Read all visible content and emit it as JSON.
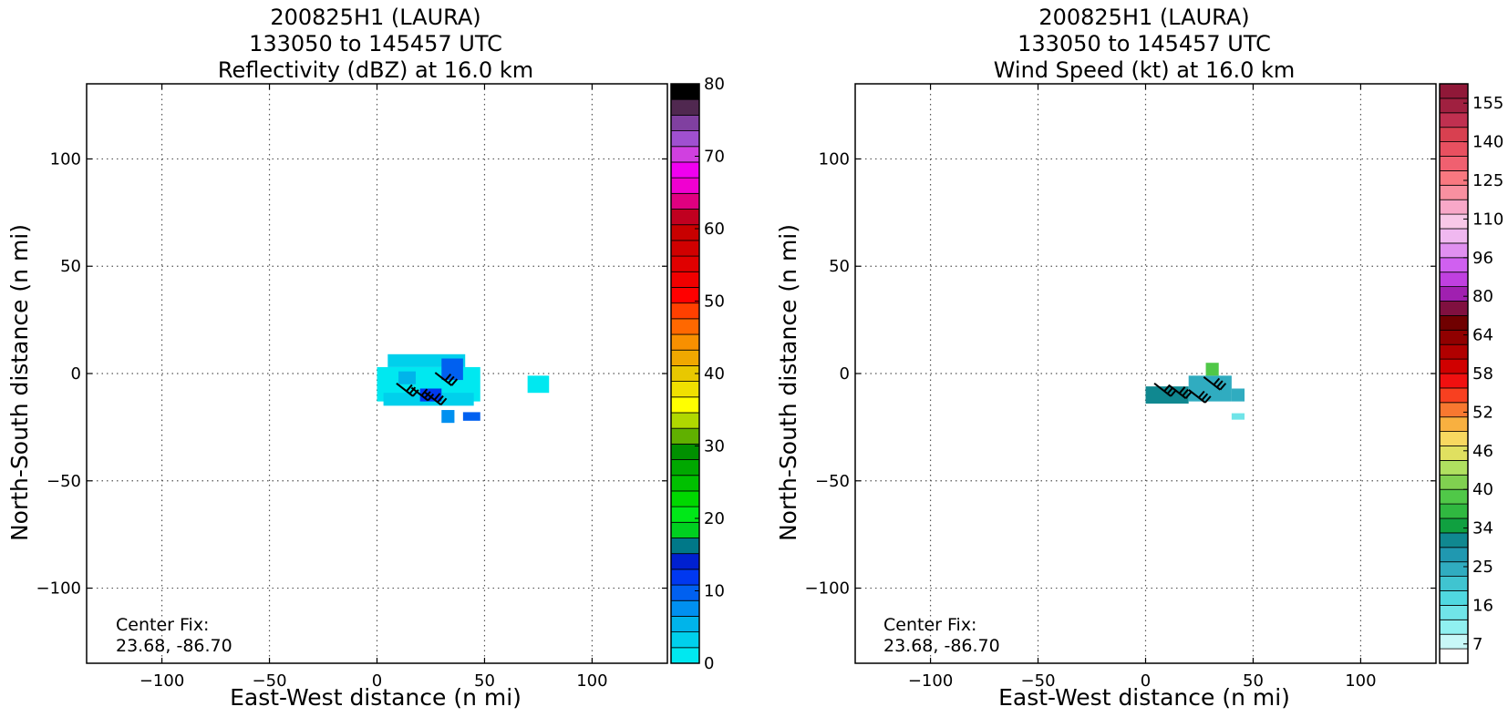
{
  "chart_data": [
    {
      "type": "heatmap",
      "variable": "reflectivity",
      "title": [
        "200825H1 (LAURA)",
        "133050 to 145457 UTC",
        "Reflectivity (dBZ) at 16.0 km"
      ],
      "xlabel": "East-West distance (n mi)",
      "ylabel": "North-South distance (n mi)",
      "xlim": [
        -135,
        135
      ],
      "ylim": [
        -135,
        135
      ],
      "xticks": [
        -100,
        -50,
        0,
        50,
        100
      ],
      "yticks": [
        -100,
        -50,
        0,
        50,
        100
      ],
      "xtick_labels": [
        "−100",
        "−50",
        "0",
        "50",
        "100"
      ],
      "ytick_labels": [
        "−100",
        "−50",
        "0",
        "50",
        "100"
      ],
      "grid": true,
      "annotation": [
        "Center Fix:",
        "23.68, -86.70"
      ],
      "colorbar": {
        "ticks": [
          0,
          10,
          20,
          30,
          40,
          50,
          60,
          70,
          80
        ],
        "tick_labels": [
          "0",
          "10",
          "20",
          "30",
          "40",
          "50",
          "60",
          "70",
          "80"
        ],
        "range": [
          0,
          80
        ],
        "colors": [
          "#00e8f0",
          "#00d0ec",
          "#00b4ea",
          "#0090f0",
          "#0060f0",
          "#0038f0",
          "#0020d0",
          "#007888",
          "#00d020",
          "#00e818",
          "#00d800",
          "#00c000",
          "#00a800",
          "#009000",
          "#60b000",
          "#b0d800",
          "#ffff00",
          "#f0e000",
          "#e8c800",
          "#f0a800",
          "#f89000",
          "#ff6800",
          "#ff4000",
          "#ff0000",
          "#f00000",
          "#e00000",
          "#d00000",
          "#c80000",
          "#c00020",
          "#e00080",
          "#f000d0",
          "#f000f0",
          "#d040e0",
          "#a050d0",
          "#8040a0",
          "#502850",
          "#000000"
        ]
      },
      "field": [
        {
          "x": 0,
          "y": -5,
          "w": 48,
          "h": 16,
          "dbz": 2
        },
        {
          "x": 5,
          "y": 6,
          "w": 36,
          "h": 6,
          "dbz": 4
        },
        {
          "x": 3,
          "y": -12,
          "w": 42,
          "h": 6,
          "dbz": 3
        },
        {
          "x": 30,
          "y": 2,
          "w": 10,
          "h": 10,
          "dbz": 10
        },
        {
          "x": 20,
          "y": -10,
          "w": 10,
          "h": 6,
          "dbz": 12
        },
        {
          "x": 10,
          "y": -2,
          "w": 8,
          "h": 6,
          "dbz": 6
        },
        {
          "x": 40,
          "y": -20,
          "w": 8,
          "h": 4,
          "dbz": 9
        },
        {
          "x": 70,
          "y": -5,
          "w": 10,
          "h": 8,
          "dbz": 2
        },
        {
          "x": 30,
          "y": -20,
          "w": 6,
          "h": 6,
          "dbz": 8
        }
      ],
      "barbs": [
        {
          "x": 15,
          "y": -8
        },
        {
          "x": 22,
          "y": -10
        },
        {
          "x": 28,
          "y": -12
        },
        {
          "x": 33,
          "y": -3
        }
      ]
    },
    {
      "type": "heatmap",
      "variable": "wind speed",
      "title": [
        "200825H1 (LAURA)",
        "133050 to 145457 UTC",
        "Wind Speed (kt) at 16.0 km"
      ],
      "xlabel": "East-West distance (n mi)",
      "ylabel": "North-South distance (n mi)",
      "xlim": [
        -135,
        135
      ],
      "ylim": [
        -135,
        135
      ],
      "xticks": [
        -100,
        -50,
        0,
        50,
        100
      ],
      "yticks": [
        -100,
        -50,
        0,
        50,
        100
      ],
      "xtick_labels": [
        "−100",
        "−50",
        "0",
        "50",
        "100"
      ],
      "ytick_labels": [
        "−100",
        "−50",
        "0",
        "50",
        "100"
      ],
      "grid": true,
      "annotation": [
        "Center Fix:",
        "23.68, -86.70"
      ],
      "colorbar": {
        "ticks": [
          7,
          16,
          25,
          34,
          40,
          46,
          52,
          58,
          64,
          80,
          96,
          110,
          125,
          140,
          155
        ],
        "tick_labels": [
          "7",
          "16",
          "25",
          "34",
          "40",
          "46",
          "52",
          "58",
          "64",
          "80",
          "96",
          "110",
          "125",
          "140",
          "155"
        ],
        "colors": [
          "#ffffff",
          "#c8f8f8",
          "#90f0f0",
          "#70e4e8",
          "#50d8e0",
          "#40c4d0",
          "#30acc0",
          "#2098b0",
          "#108890",
          "#10a040",
          "#30b840",
          "#50c848",
          "#80d050",
          "#b0e060",
          "#e0e060",
          "#f8d860",
          "#f8b040",
          "#f87830",
          "#f84020",
          "#f01010",
          "#d00000",
          "#b00000",
          "#900000",
          "#700000",
          "#801040",
          "#a020b0",
          "#c040e0",
          "#d060f0",
          "#e090f0",
          "#f0b8f0",
          "#f8c8e8",
          "#f8a8c8",
          "#f890a0",
          "#f87880",
          "#f06070",
          "#e85060",
          "#d84050",
          "#c03050",
          "#a02040",
          "#901838"
        ]
      },
      "field": [
        {
          "x": 0,
          "y": -10,
          "w": 20,
          "h": 8,
          "knots": 38
        },
        {
          "x": 20,
          "y": -7,
          "w": 20,
          "h": 12,
          "knots": 27
        },
        {
          "x": 28,
          "y": 2,
          "w": 6,
          "h": 6,
          "knots": 44
        },
        {
          "x": 40,
          "y": -10,
          "w": 6,
          "h": 6,
          "knots": 25
        },
        {
          "x": 40,
          "y": -20,
          "w": 6,
          "h": 3,
          "knots": 16
        }
      ],
      "barbs": [
        {
          "x": 10,
          "y": -8
        },
        {
          "x": 17,
          "y": -9
        },
        {
          "x": 26,
          "y": -11
        },
        {
          "x": 33,
          "y": -5
        }
      ]
    }
  ]
}
